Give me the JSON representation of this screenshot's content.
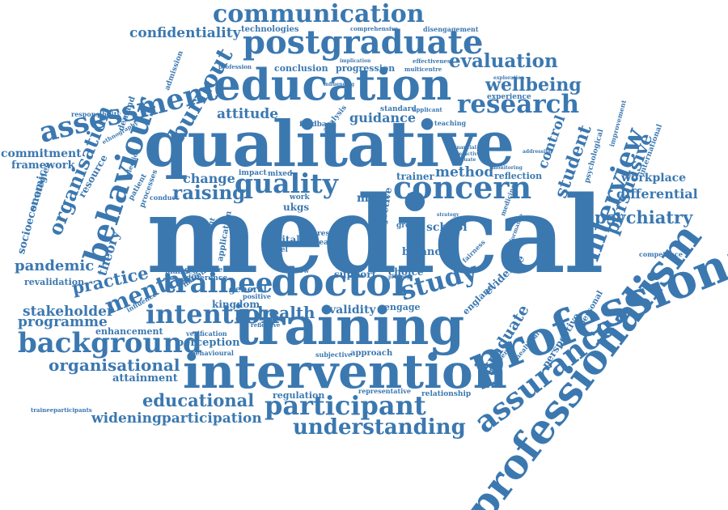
{
  "color": "#3b78b0",
  "words": [
    {
      "id": "medical",
      "text": "medical"
    },
    {
      "id": "qualitative",
      "text": "qualitative"
    },
    {
      "id": "training",
      "text": "training"
    },
    {
      "id": "intervention",
      "text": "intervention"
    },
    {
      "id": "education",
      "text": "education"
    },
    {
      "id": "professional",
      "text": "professional"
    },
    {
      "id": "professionalism",
      "text": "professionalism"
    },
    {
      "id": "postgraduate",
      "text": "postgraduate"
    },
    {
      "id": "doctor",
      "text": "doctor"
    },
    {
      "id": "communication",
      "text": "communication"
    },
    {
      "id": "assessment",
      "text": "assessment"
    },
    {
      "id": "behaviour",
      "text": "behaviour"
    },
    {
      "id": "assurance",
      "text": "assurance"
    },
    {
      "id": "background",
      "text": "background"
    },
    {
      "id": "intention",
      "text": "intention"
    },
    {
      "id": "concern",
      "text": "concern"
    },
    {
      "id": "research",
      "text": "research"
    },
    {
      "id": "study",
      "text": "study"
    },
    {
      "id": "trainee",
      "text": "trainee"
    },
    {
      "id": "participant",
      "text": "participant"
    },
    {
      "id": "understanding",
      "text": "understanding"
    },
    {
      "id": "interview",
      "text": "interview"
    },
    {
      "id": "burnout",
      "text": "burnout"
    },
    {
      "id": "organisation",
      "text": "organisation"
    },
    {
      "id": "mental",
      "text": "mental"
    },
    {
      "id": "quality",
      "text": "quality"
    },
    {
      "id": "raising",
      "text": "raising"
    },
    {
      "id": "evaluation",
      "text": "evaluation"
    },
    {
      "id": "wellbeing",
      "text": "wellbeing"
    },
    {
      "id": "confidentiality",
      "text": "confidentiality"
    },
    {
      "id": "psychiatry",
      "text": "psychiatry"
    },
    {
      "id": "persuasive",
      "text": "persuasive"
    },
    {
      "id": "student",
      "text": "student"
    },
    {
      "id": "educational",
      "text": "educational"
    },
    {
      "id": "wideningparticipation",
      "text": "wideningparticipation"
    },
    {
      "id": "organisational",
      "text": "organisational"
    },
    {
      "id": "stakeholder",
      "text": "stakeholder"
    },
    {
      "id": "programme",
      "text": "programme"
    },
    {
      "id": "pandemic",
      "text": "pandemic"
    },
    {
      "id": "practice",
      "text": "practice"
    },
    {
      "id": "health",
      "text": "health"
    },
    {
      "id": "attitude",
      "text": "attitude"
    },
    {
      "id": "graduate",
      "text": "graduate"
    },
    {
      "id": "theory",
      "text": "theory"
    },
    {
      "id": "commitment",
      "text": "commitment"
    },
    {
      "id": "framework",
      "text": "framework"
    },
    {
      "id": "socioeconomic",
      "text": "socioeconomic"
    },
    {
      "id": "differential",
      "text": "differential"
    },
    {
      "id": "workplace",
      "text": "workplace"
    },
    {
      "id": "method",
      "text": "method"
    },
    {
      "id": "guidance",
      "text": "guidance"
    },
    {
      "id": "change",
      "text": "change"
    },
    {
      "id": "control",
      "text": "control"
    },
    {
      "id": "attainment",
      "text": "attainment"
    },
    {
      "id": "perception",
      "text": "perception"
    },
    {
      "id": "validity",
      "text": "validity"
    },
    {
      "id": "regulation",
      "text": "regulation"
    },
    {
      "id": "revalidation",
      "text": "revalidation"
    },
    {
      "id": "enhancement",
      "text": "enhancement"
    },
    {
      "id": "kingdom",
      "text": "kingdom"
    },
    {
      "id": "perspective",
      "text": "perspective"
    },
    {
      "id": "technologies",
      "text": "technologies"
    },
    {
      "id": "conclusion",
      "text": "conclusion"
    },
    {
      "id": "progression",
      "text": "progression"
    },
    {
      "id": "reflection",
      "text": "reflection"
    },
    {
      "id": "balance",
      "text": "balance"
    },
    {
      "id": "evidence",
      "text": "evidence"
    },
    {
      "id": "school",
      "text": "school"
    },
    {
      "id": "digital",
      "text": "digital"
    },
    {
      "id": "general",
      "text": "general"
    },
    {
      "id": "support",
      "text": "support"
    },
    {
      "id": "choice",
      "text": "choice"
    },
    {
      "id": "engage",
      "text": "engage"
    },
    {
      "id": "approach",
      "text": "approach"
    },
    {
      "id": "subjective",
      "text": "subjective"
    },
    {
      "id": "relationship",
      "text": "relationship"
    },
    {
      "id": "resource",
      "text": "resource"
    },
    {
      "id": "strategies",
      "text": "strategies"
    },
    {
      "id": "responsibility",
      "text": "responsibility"
    },
    {
      "id": "demand",
      "text": "demand"
    },
    {
      "id": "admission",
      "text": "admission"
    },
    {
      "id": "experience",
      "text": "experience"
    },
    {
      "id": "teaching",
      "text": "teaching"
    },
    {
      "id": "standard",
      "text": "standard"
    },
    {
      "id": "feedback",
      "text": "feedback"
    },
    {
      "id": "analysis",
      "text": "analysis"
    },
    {
      "id": "difference",
      "text": "difference"
    },
    {
      "id": "guideline",
      "text": "guideline"
    },
    {
      "id": "patient",
      "text": "patient"
    },
    {
      "id": "processes",
      "text": "processes"
    },
    {
      "id": "selection",
      "text": "selection"
    },
    {
      "id": "conduct",
      "text": "conduct"
    },
    {
      "id": "impact",
      "text": "impact"
    },
    {
      "id": "mixed",
      "text": "mixed"
    },
    {
      "id": "work",
      "text": "work"
    },
    {
      "id": "ukgs",
      "text": "ukgs"
    },
    {
      "id": "result",
      "text": "result"
    },
    {
      "id": "leave",
      "text": "leave"
    },
    {
      "id": "model",
      "text": "model"
    },
    {
      "id": "review",
      "text": "review"
    },
    {
      "id": "safety",
      "text": "safety"
    },
    {
      "id": "more",
      "text": "more"
    },
    {
      "id": "group",
      "text": "group"
    },
    {
      "id": "trainer",
      "text": "trainer"
    },
    {
      "id": "objective",
      "text": "objective"
    },
    {
      "id": "competence",
      "text": "competence"
    },
    {
      "id": "international",
      "text": "international"
    },
    {
      "id": "psychological",
      "text": "psychological"
    },
    {
      "id": "improvement",
      "text": "improvement"
    },
    {
      "id": "personal",
      "text": "personal"
    },
    {
      "id": "healthcare",
      "text": "healthcare"
    },
    {
      "id": "independent",
      "text": "independent"
    },
    {
      "id": "england",
      "text": "england"
    },
    {
      "id": "positive",
      "text": "positive"
    },
    {
      "id": "national",
      "text": "national"
    },
    {
      "id": "planned",
      "text": "planned"
    },
    {
      "id": "significant",
      "text": "significant"
    },
    {
      "id": "application",
      "text": "application"
    },
    {
      "id": "influence",
      "text": "influence"
    },
    {
      "id": "verification",
      "text": "verification"
    },
    {
      "id": "behavioural",
      "text": "behavioural"
    },
    {
      "id": "representative",
      "text": "representative"
    },
    {
      "id": "traineeparticipants",
      "text": "traineeparticipants"
    },
    {
      "id": "comprehensive",
      "text": "comprehensive"
    },
    {
      "id": "disengagement",
      "text": "disengagement"
    },
    {
      "id": "effectiveness",
      "text": "effectiveness"
    },
    {
      "id": "multicentre",
      "text": "multicentre"
    },
    {
      "id": "profession",
      "text": "profession"
    },
    {
      "id": "primary",
      "text": "primary"
    },
    {
      "id": "reflective",
      "text": "reflective"
    },
    {
      "id": "fairness",
      "text": "fairness"
    },
    {
      "id": "medicine",
      "text": "medicine"
    },
    {
      "id": "performance",
      "text": "performance"
    },
    {
      "id": "ethnography",
      "text": "ethnography"
    },
    {
      "id": "applicant",
      "text": "applicant"
    },
    {
      "id": "exploration",
      "text": "exploration"
    },
    {
      "id": "monitoring",
      "text": "monitoring"
    },
    {
      "id": "evaluate",
      "text": "evaluate"
    },
    {
      "id": "financial",
      "text": "financial"
    },
    {
      "id": "predictive",
      "text": "predictive"
    },
    {
      "id": "strategy",
      "text": "strategy"
    },
    {
      "id": "addressing",
      "text": "addressing"
    },
    {
      "id": "implication",
      "text": "implication"
    },
    {
      "id": "influencing",
      "text": "influencing"
    }
  ]
}
